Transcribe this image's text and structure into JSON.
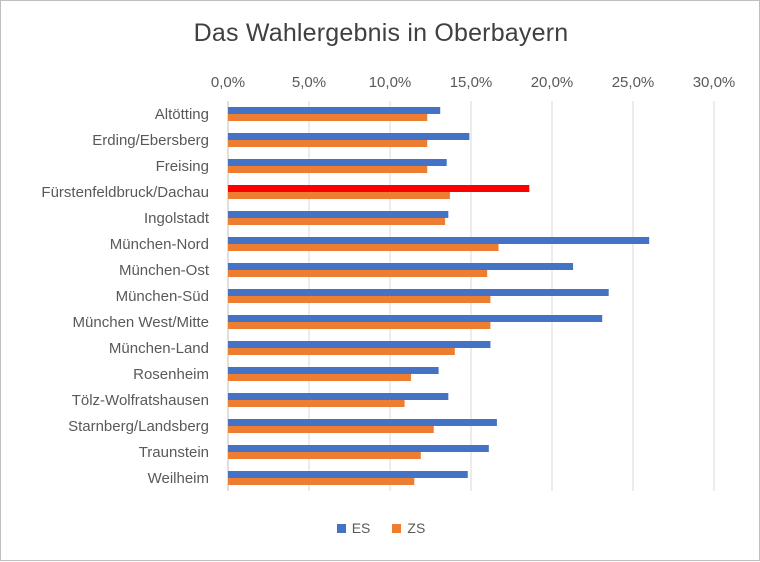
{
  "chart_data": {
    "type": "bar",
    "orientation": "horizontal",
    "title": "Das Wahlergebnis in Oberbayern",
    "xlabel": "",
    "ylabel": "",
    "xlim": [
      0,
      30
    ],
    "x_ticks": [
      "0,0%",
      "5,0%",
      "10,0%",
      "15,0%",
      "20,0%",
      "25,0%",
      "30,0%"
    ],
    "x_axis_position": "top",
    "grid": true,
    "legend_position": "bottom",
    "categories": [
      "Altötting",
      "Erding/Ebersberg",
      "Freising",
      "Fürstenfeldbruck/Dachau",
      "Ingolstadt",
      "München-Nord",
      "München-Ost",
      "München-Süd",
      "München West/Mitte",
      "München-Land",
      "Rosenheim",
      "Tölz-Wolfratshausen",
      "Starnberg/Landsberg",
      "Traunstein",
      "Weilheim"
    ],
    "series": [
      {
        "name": "ES",
        "color": "#4472c4",
        "values": [
          13.1,
          14.9,
          13.5,
          18.6,
          13.6,
          26.0,
          21.3,
          23.5,
          23.1,
          16.2,
          13.0,
          13.6,
          16.6,
          16.1,
          14.8
        ],
        "highlight": {
          "index": 3,
          "color": "#ff0000"
        }
      },
      {
        "name": "ZS",
        "color": "#ed7d31",
        "values": [
          12.3,
          12.3,
          12.3,
          13.7,
          13.4,
          16.7,
          16.0,
          16.2,
          16.2,
          14.0,
          11.3,
          10.9,
          12.7,
          11.9,
          11.5
        ]
      }
    ]
  }
}
